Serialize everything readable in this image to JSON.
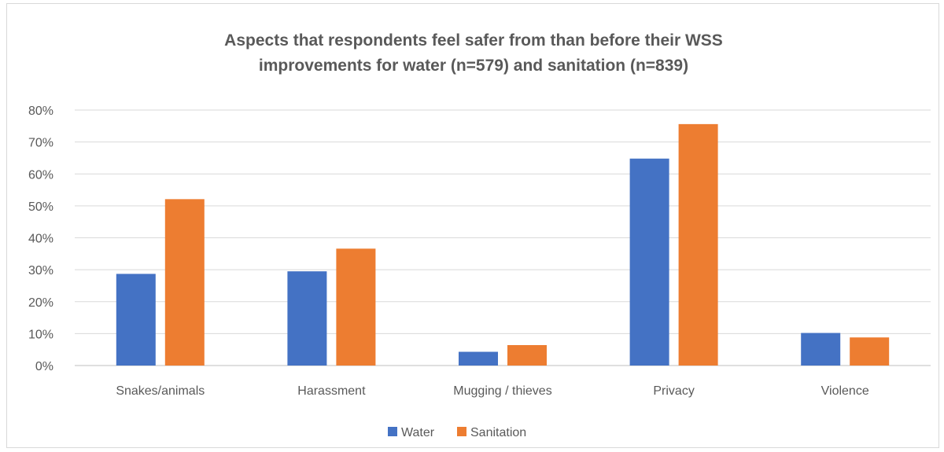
{
  "chart_data": {
    "type": "bar",
    "title_lines": [
      "Aspects that respondents feel safer from than before their WSS",
      "improvements for water (n=579) and sanitation (n=839)"
    ],
    "categories": [
      "Snakes/animals",
      "Harassment",
      "Mugging / thieves",
      "Privacy",
      "Violence"
    ],
    "series": [
      {
        "name": "Water",
        "color": "#4472c4",
        "values": [
          28.7,
          29.5,
          4.3,
          64.8,
          10.2
        ]
      },
      {
        "name": "Sanitation",
        "color": "#ed7d31",
        "values": [
          52.1,
          36.6,
          6.4,
          75.6,
          8.8
        ]
      }
    ],
    "y_ticks": [
      "0%",
      "10%",
      "20%",
      "30%",
      "40%",
      "50%",
      "60%",
      "70%",
      "80%"
    ],
    "ylim": [
      0,
      80
    ],
    "grid": true,
    "legend_position": "bottom"
  }
}
